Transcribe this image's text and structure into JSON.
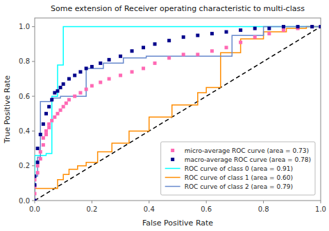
{
  "chart_data": {
    "type": "line",
    "title": "Some extension of Receiver operating characteristic to multi-class",
    "xlabel": "False Positive Rate",
    "ylabel": "True Positive Rate",
    "xlim": [
      0.0,
      1.0
    ],
    "ylim": [
      0.0,
      1.05
    ],
    "xticks": [
      {
        "value": 0.0,
        "label": "0.0"
      },
      0.2,
      0.4,
      0.6,
      0.8,
      {
        "value": 1.0,
        "label": "1.0"
      }
    ],
    "yticks": [
      {
        "value": 0.0,
        "label": "0.0"
      },
      0.2,
      0.4,
      0.6,
      0.8,
      {
        "value": 1.0,
        "label": "1.0"
      }
    ],
    "grid": false,
    "legend": "lower right",
    "series": [
      {
        "type": "line",
        "color": "black",
        "line_style": "dashed",
        "x": [
          0,
          1
        ],
        "values": [
          0,
          1
        ]
      },
      {
        "name": "micro-average ROC curve (area = 0.73)",
        "type": "line",
        "color": "#FF69B4",
        "line_style": "none",
        "marker": "square",
        "x": [
          0.0,
          0.0,
          0.0,
          0.0,
          0.01,
          0.01,
          0.02,
          0.02,
          0.03,
          0.03,
          0.04,
          0.04,
          0.05,
          0.05,
          0.06,
          0.07,
          0.08,
          0.09,
          0.1,
          0.11,
          0.12,
          0.14,
          0.16,
          0.18,
          0.2,
          0.23,
          0.26,
          0.3,
          0.34,
          0.38,
          0.42,
          0.47,
          0.52,
          0.57,
          0.62,
          0.67,
          0.72,
          0.77,
          0.82,
          0.87,
          0.92,
          0.97,
          1.0
        ],
        "values": [
          0.0,
          0.04,
          0.08,
          0.12,
          0.16,
          0.2,
          0.24,
          0.28,
          0.32,
          0.36,
          0.38,
          0.4,
          0.42,
          0.44,
          0.46,
          0.48,
          0.5,
          0.52,
          0.54,
          0.56,
          0.58,
          0.6,
          0.62,
          0.64,
          0.66,
          0.68,
          0.7,
          0.72,
          0.74,
          0.76,
          0.79,
          0.82,
          0.84,
          0.84,
          0.86,
          0.88,
          0.91,
          0.94,
          0.96,
          0.98,
          0.99,
          1.0,
          1.0
        ]
      },
      {
        "name": "macro-average ROC curve (area = 0.78)",
        "type": "line",
        "color": "#00008B",
        "line_style": "none",
        "marker": "square",
        "x": [
          0.0,
          0.0,
          0.0,
          0.01,
          0.01,
          0.02,
          0.03,
          0.04,
          0.05,
          0.06,
          0.07,
          0.08,
          0.09,
          0.1,
          0.12,
          0.14,
          0.16,
          0.18,
          0.2,
          0.23,
          0.26,
          0.3,
          0.34,
          0.38,
          0.42,
          0.47,
          0.52,
          0.57,
          0.62,
          0.67,
          0.72,
          0.77,
          0.82,
          0.87,
          0.92,
          0.97,
          1.0
        ],
        "values": [
          0.0,
          0.09,
          0.14,
          0.22,
          0.3,
          0.38,
          0.44,
          0.5,
          0.54,
          0.58,
          0.62,
          0.63,
          0.65,
          0.67,
          0.7,
          0.72,
          0.74,
          0.76,
          0.77,
          0.79,
          0.81,
          0.83,
          0.86,
          0.88,
          0.9,
          0.92,
          0.94,
          0.95,
          0.96,
          0.97,
          0.98,
          0.99,
          0.99,
          1.0,
          1.0,
          1.0,
          1.0
        ]
      },
      {
        "name": "ROC curve of class 0 (area = 0.91)",
        "type": "step",
        "color": "cyan",
        "line_style": "solid",
        "x": [
          0.0,
          0.0,
          0.0,
          0.01,
          0.02,
          0.03,
          0.04,
          0.06,
          0.08,
          0.1,
          0.13,
          0.17,
          0.22,
          0.3,
          1.0
        ],
        "values": [
          0.0,
          0.14,
          0.26,
          0.26,
          0.26,
          0.26,
          0.27,
          0.6,
          0.78,
          1.0,
          1.0,
          1.0,
          1.0,
          1.0,
          1.0
        ]
      },
      {
        "name": "ROC curve of class 1 (area = 0.60)",
        "type": "step",
        "color": "darkorange",
        "line_style": "solid",
        "x": [
          0.0,
          0.0,
          0.05,
          0.08,
          0.1,
          0.12,
          0.15,
          0.18,
          0.22,
          0.27,
          0.33,
          0.4,
          0.48,
          0.57,
          0.6,
          0.65,
          0.72,
          0.8,
          0.88,
          0.95,
          1.0
        ],
        "values": [
          0.0,
          0.07,
          0.07,
          0.12,
          0.15,
          0.18,
          0.2,
          0.22,
          0.28,
          0.33,
          0.4,
          0.48,
          0.55,
          0.62,
          0.65,
          0.85,
          0.93,
          0.97,
          0.99,
          1.0,
          1.0
        ]
      },
      {
        "name": "ROC curve of class 2 (area = 0.79)",
        "type": "step",
        "color": "#6688CC",
        "line_style": "solid",
        "x": [
          0.0,
          0.0,
          0.01,
          0.02,
          0.04,
          0.06,
          0.09,
          0.13,
          0.18,
          0.24,
          0.31,
          0.39,
          0.48,
          0.58,
          0.69,
          0.8,
          0.9,
          1.0
        ],
        "values": [
          0.0,
          0.14,
          0.25,
          0.57,
          0.57,
          0.59,
          0.6,
          0.6,
          0.76,
          0.79,
          0.82,
          0.83,
          0.83,
          0.83,
          0.95,
          1.0,
          1.0,
          1.0
        ]
      }
    ]
  }
}
